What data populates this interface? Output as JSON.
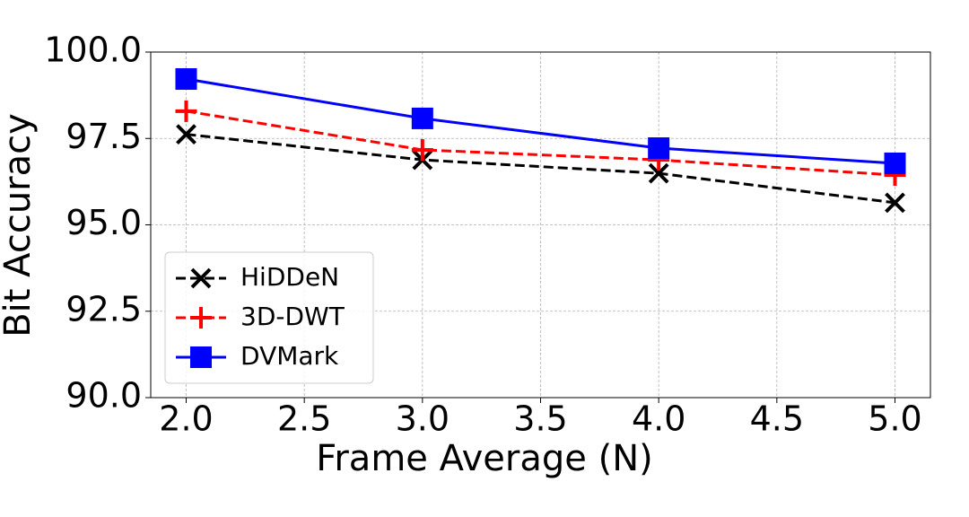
{
  "chart_data": {
    "type": "line",
    "x": [
      2,
      3,
      4,
      5
    ],
    "xlabel": "Frame Average (N)",
    "ylabel": "Bit Accuracy",
    "series": [
      {
        "name": "HiDDeN",
        "color": "#000000",
        "marker": "x",
        "linestyle": "dashed",
        "values": [
          97.62,
          96.88,
          96.49,
          95.64
        ]
      },
      {
        "name": "3D-DWT",
        "color": "#ff0000",
        "marker": "+",
        "linestyle": "dashed",
        "values": [
          98.29,
          97.17,
          96.88,
          96.44
        ]
      },
      {
        "name": "DVMark",
        "color": "#0000ff",
        "marker": "s",
        "linestyle": "solid",
        "values": [
          99.22,
          98.08,
          97.22,
          96.78
        ]
      }
    ],
    "xlim": [
      1.85,
      5.15
    ],
    "xticks": [
      {
        "value": 2,
        "label": "2.0"
      },
      2.5,
      {
        "value": 3,
        "label": "3.0"
      },
      3.5,
      {
        "value": 4,
        "label": "4.0"
      },
      4.5,
      {
        "value": 5,
        "label": "5.0"
      }
    ],
    "ylim": [
      90,
      100
    ],
    "yticks": [
      {
        "value": 90,
        "label": "90.0"
      },
      92.5,
      {
        "value": 95,
        "label": "95.0"
      },
      97.5,
      {
        "value": 100,
        "label": "100.0"
      }
    ],
    "grid": true,
    "legend": "lower left"
  }
}
